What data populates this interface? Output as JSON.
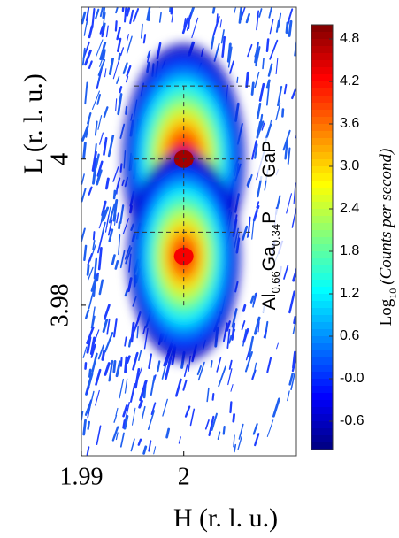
{
  "chart_data": {
    "type": "rsm",
    "x_label": "H (r. l. u.)",
    "y_label": "L (r. l. u.)",
    "xlim": [
      1.99,
      2.011
    ],
    "ylim": [
      3.9594,
      4.0208
    ],
    "xticks": [
      1.99,
      2
    ],
    "yticks": [
      4,
      3.98
    ],
    "reference_lines": {
      "h": [
        2
      ],
      "l": [
        4.01,
        4,
        3.99
      ]
    },
    "peaks": [
      {
        "label": [
          "GaP"
        ],
        "h": 2,
        "l": 4,
        "intensity": 4.8
      },
      {
        "label": [
          "Al",
          "0.66",
          "Ga",
          "0.34",
          "P"
        ],
        "h": 2,
        "l": 3.9867,
        "intensity": 4.3
      }
    ],
    "colorbar": {
      "colormap": "jet",
      "label": [
        "Log",
        "10",
        "(Counts per second)"
      ],
      "clim": [
        -1,
        5
      ],
      "ticks": [
        4.8,
        4.2,
        3.6,
        {
          "value": 3,
          "label": "3.0"
        },
        2.4,
        1.8,
        1.2,
        0.6,
        {
          "value": 0,
          "label": "-0.0"
        },
        -0.6
      ]
    }
  }
}
